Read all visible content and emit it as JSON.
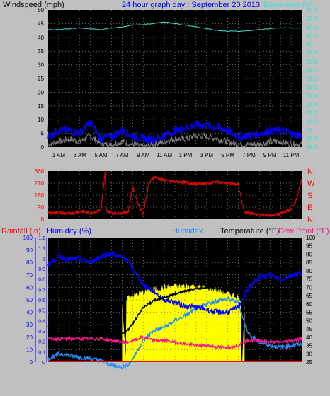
{
  "header": {
    "left_label": "Windspeed (mph)",
    "title": "24 hour graph day : September 20 2013",
    "right_label": "Barometer (in)"
  },
  "bottom_header": {
    "rainfall": "Rainfall (in)",
    "humidity": "Humidity (%)",
    "humidex": "Humidex",
    "temperature": "Temperature (°F)",
    "dewpoint": "Dew Point (°F)"
  },
  "x_ticks": [
    "1 AM",
    "3 AM",
    "5 AM",
    "7 AM",
    "9 AM",
    "11 AM",
    "1 PM",
    "3 PM",
    "5 PM",
    "7 PM",
    "9 PM",
    "11 PM"
  ],
  "colors": {
    "wind_avg": "#0000ff",
    "wind_gust": "#000000",
    "wind_min": "#808080",
    "barometer": "#40e0d0",
    "direction": "#ff0000",
    "humidity": "#0000ff",
    "humidex": "#1e90ff",
    "temperature": "#000000",
    "dewpoint": "#ff1493",
    "solar": "#ffff00",
    "rain": "#ff0000",
    "rain_axis": "#0000ff"
  },
  "chart_data": [
    {
      "type": "line",
      "name": "windspeed-barometer",
      "x_hours": [
        0,
        1,
        2,
        3,
        4,
        5,
        6,
        7,
        8,
        9,
        10,
        11,
        12,
        13,
        14,
        15,
        16,
        17,
        18,
        19,
        20,
        21,
        22,
        23,
        24
      ],
      "ylim": [
        0,
        50
      ],
      "y_ticks": [
        "0",
        "5",
        "10",
        "15",
        "20",
        "25",
        "30",
        "35",
        "40",
        "45",
        "50"
      ],
      "y2lim": [
        28.8,
        30.4
      ],
      "y2_ticks": [
        "28.8",
        "28.9",
        "29",
        "29.1",
        "29.2",
        "29.3",
        "29.4",
        "29.5",
        "29.6",
        "29.7",
        "29.8",
        "29.9",
        "30",
        "30.1",
        "30.2",
        "30.3",
        "30.4"
      ],
      "series": [
        {
          "key": "wind_gust",
          "values": [
            7,
            9,
            9,
            8,
            11,
            6,
            7,
            9,
            7,
            5,
            6,
            7,
            9,
            10,
            11,
            12,
            11,
            10,
            8,
            7,
            8,
            9,
            9,
            8,
            7
          ]
        },
        {
          "key": "wind_avg",
          "values": [
            4,
            6,
            6,
            5,
            9,
            3,
            4,
            6,
            4,
            3,
            3,
            4,
            6,
            7,
            8,
            8,
            7,
            6,
            4,
            4,
            5,
            6,
            6,
            5,
            4
          ]
        },
        {
          "key": "wind_min",
          "values": [
            1,
            2,
            3,
            2,
            4,
            1,
            1,
            2,
            1,
            0,
            1,
            2,
            3,
            3,
            4,
            4,
            3,
            2,
            1,
            1,
            1,
            2,
            2,
            1,
            1
          ]
        },
        {
          "key": "barometer",
          "values": [
            30.17,
            30.17,
            30.18,
            30.19,
            30.18,
            30.17,
            30.19,
            30.2,
            30.22,
            30.23,
            30.24,
            30.26,
            30.24,
            30.22,
            30.2,
            30.18,
            30.16,
            30.15,
            30.15,
            30.16,
            30.17,
            30.18,
            30.19,
            30.19,
            30.19
          ]
        }
      ]
    },
    {
      "type": "line",
      "name": "wind-direction",
      "x_hours": [
        0,
        1,
        2,
        3,
        4,
        5,
        5.4,
        5.5,
        6,
        7,
        7.6,
        8,
        8.5,
        9,
        9.5,
        10,
        11,
        12,
        13,
        14,
        15,
        16,
        17,
        18,
        18.3,
        18.6,
        19,
        20,
        21,
        22,
        22.5,
        23,
        23.5,
        24
      ],
      "ylim": [
        0,
        360
      ],
      "y_ticks": [
        "0",
        "90",
        "180",
        "270",
        "360"
      ],
      "compass": [
        "N",
        "W",
        "S",
        "E",
        "N"
      ],
      "series": [
        {
          "key": "direction",
          "values": [
            45,
            50,
            40,
            60,
            45,
            70,
            350,
            60,
            50,
            45,
            60,
            240,
            120,
            40,
            260,
            320,
            290,
            280,
            275,
            265,
            270,
            280,
            270,
            260,
            140,
            50,
            45,
            35,
            30,
            40,
            60,
            70,
            150,
            290
          ]
        }
      ]
    },
    {
      "type": "line",
      "name": "humidity-temperature",
      "x_hours": [
        0,
        1,
        2,
        3,
        4,
        5,
        6,
        7,
        7.5,
        8,
        9,
        10,
        11,
        12,
        13,
        14,
        15,
        16,
        17,
        18,
        18.5,
        19,
        20,
        21,
        22,
        23,
        24
      ],
      "y_humidity_lim": [
        0,
        100
      ],
      "y_humidity_ticks": [
        "0",
        "10",
        "20",
        "30",
        "40",
        "50",
        "60",
        "70",
        "80",
        "90",
        "100"
      ],
      "y_rain_lim": [
        0,
        1.2
      ],
      "y_rain_ticks": [
        "0",
        "0.1",
        "0.2",
        "0.3",
        "0.4",
        "0.5",
        "0.6",
        "0.7",
        "0.8",
        "0.9",
        "1",
        "1.1",
        "1.2"
      ],
      "y_temp_lim": [
        25,
        100
      ],
      "y_temp_ticks": [
        "25",
        "30",
        "35",
        "40",
        "45",
        "50",
        "55",
        "60",
        "65",
        "70",
        "75",
        "80",
        "85",
        "90",
        "95",
        "100"
      ],
      "series": [
        {
          "key": "humidity",
          "values": [
            78,
            85,
            82,
            83,
            80,
            85,
            87,
            84,
            82,
            75,
            62,
            57,
            50,
            48,
            45,
            44,
            42,
            40,
            40,
            44,
            52,
            60,
            68,
            70,
            66,
            70,
            72
          ]
        },
        {
          "key": "humidex",
          "values": [
            27,
            30,
            29,
            28,
            27,
            26,
            23,
            22,
            23,
            27,
            38,
            44,
            46,
            50,
            53,
            57,
            60,
            62,
            63,
            61,
            50,
            42,
            37,
            35,
            34,
            35,
            36
          ]
        },
        {
          "key": "temperature",
          "values": [
            47,
            49,
            48,
            47,
            46,
            45,
            43,
            42,
            44,
            48,
            58,
            62,
            64,
            66,
            68,
            69,
            70,
            71,
            71,
            68,
            57,
            50,
            48,
            47,
            46,
            47,
            48
          ]
        },
        {
          "key": "dewpoint",
          "values": [
            39,
            39,
            39,
            39,
            39,
            39,
            38,
            37,
            37,
            38,
            40,
            38,
            38,
            37,
            36,
            35,
            35,
            34,
            34,
            35,
            37,
            38,
            38,
            37,
            37,
            38,
            39
          ]
        }
      ],
      "solar_window_hours": [
        7.0,
        18.6
      ],
      "rain_daily": 0.0
    }
  ]
}
